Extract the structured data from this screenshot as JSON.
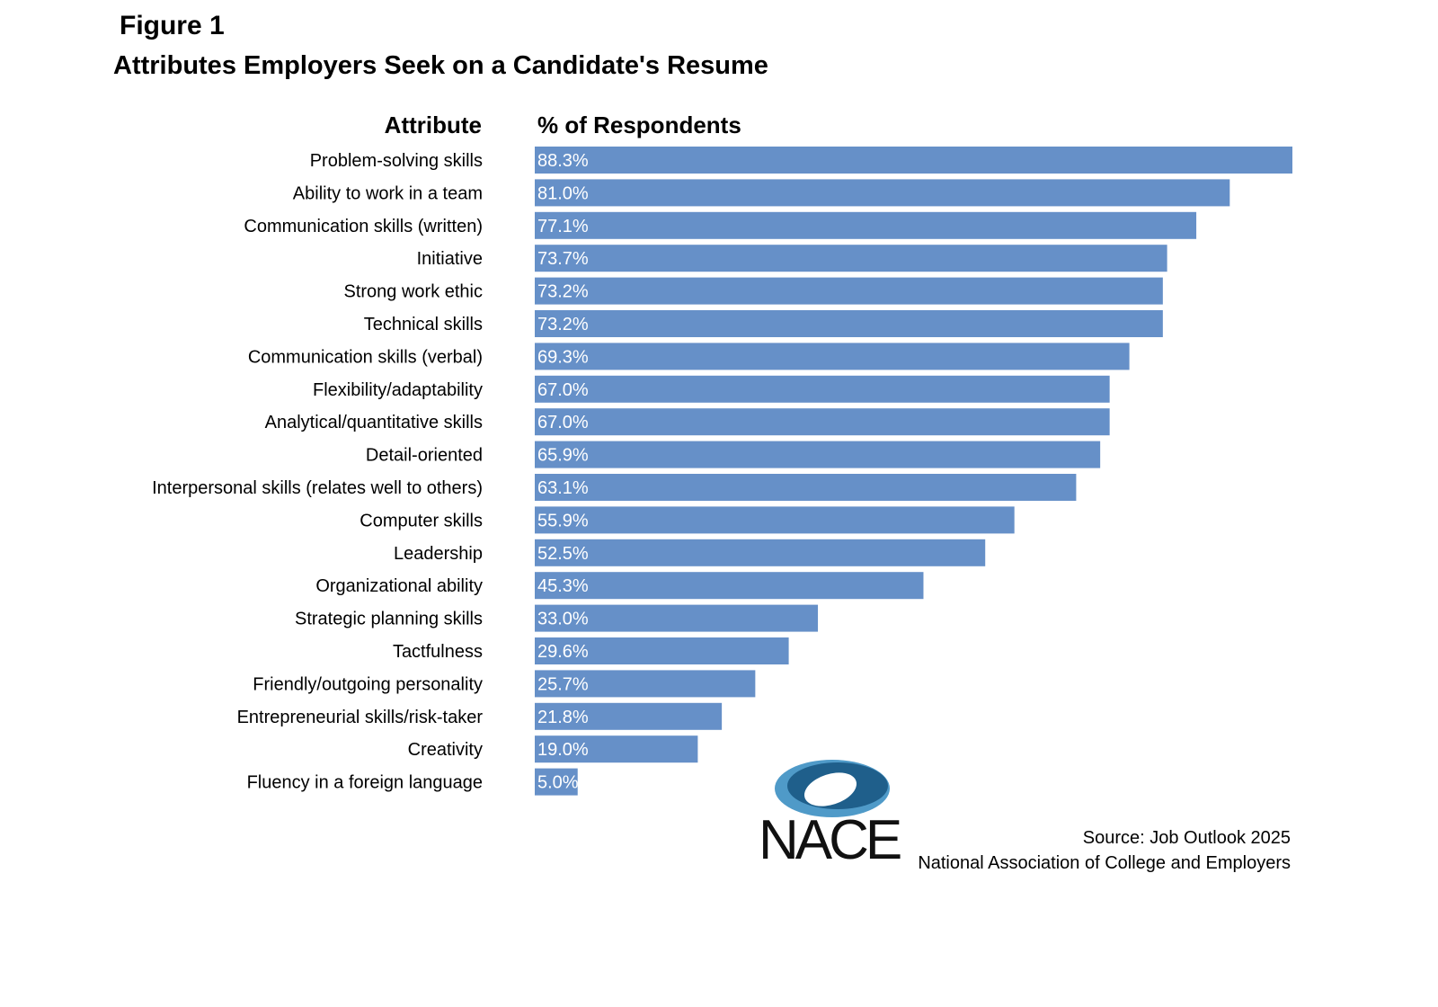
{
  "figure_label": "Figure 1",
  "colors": {
    "bar": "#6690c8",
    "value_text": "#ffffff",
    "logo_dark": "#1f5f8b",
    "logo_light": "#4f9ac8"
  },
  "chart_data": {
    "type": "bar",
    "orientation": "horizontal",
    "title": "Attributes Employers Seek on a Candidate's Resume",
    "category_header": "Attribute",
    "value_header": "% of Respondents",
    "categories": [
      "Problem-solving skills",
      "Ability to work in a team",
      "Communication skills (written)",
      "Initiative",
      "Strong work ethic",
      "Technical skills",
      "Communication skills (verbal)",
      "Flexibility/adaptability",
      "Analytical/quantitative skills",
      "Detail-oriented",
      "Interpersonal skills (relates well to others)",
      "Computer skills",
      "Leadership",
      "Organizational ability",
      "Strategic planning skills",
      "Tactfulness",
      "Friendly/outgoing personality",
      "Entrepreneurial skills/risk-taker",
      "Creativity",
      "Fluency in a foreign language"
    ],
    "values": [
      88.3,
      81.0,
      77.1,
      73.7,
      73.2,
      73.2,
      69.3,
      67.0,
      67.0,
      65.9,
      63.1,
      55.9,
      52.5,
      45.3,
      33.0,
      29.6,
      25.7,
      21.8,
      19.0,
      5.0
    ],
    "value_labels": [
      "88.3%",
      "81.0%",
      "77.1%",
      "73.7%",
      "73.2%",
      "73.2%",
      "69.3%",
      "67.0%",
      "67.0%",
      "65.9%",
      "63.1%",
      "55.9%",
      "52.5%",
      "45.3%",
      "33.0%",
      "29.6%",
      "25.7%",
      "21.8%",
      "19.0%",
      "5.0%"
    ],
    "xlim": [
      0,
      88.3
    ],
    "grid": false,
    "legend": "none"
  },
  "logo": {
    "name": "nace-logo",
    "text": "NACE"
  },
  "source": {
    "line1": "Source:  Job Outlook 2025",
    "line2": "National Association of College and Employers"
  }
}
